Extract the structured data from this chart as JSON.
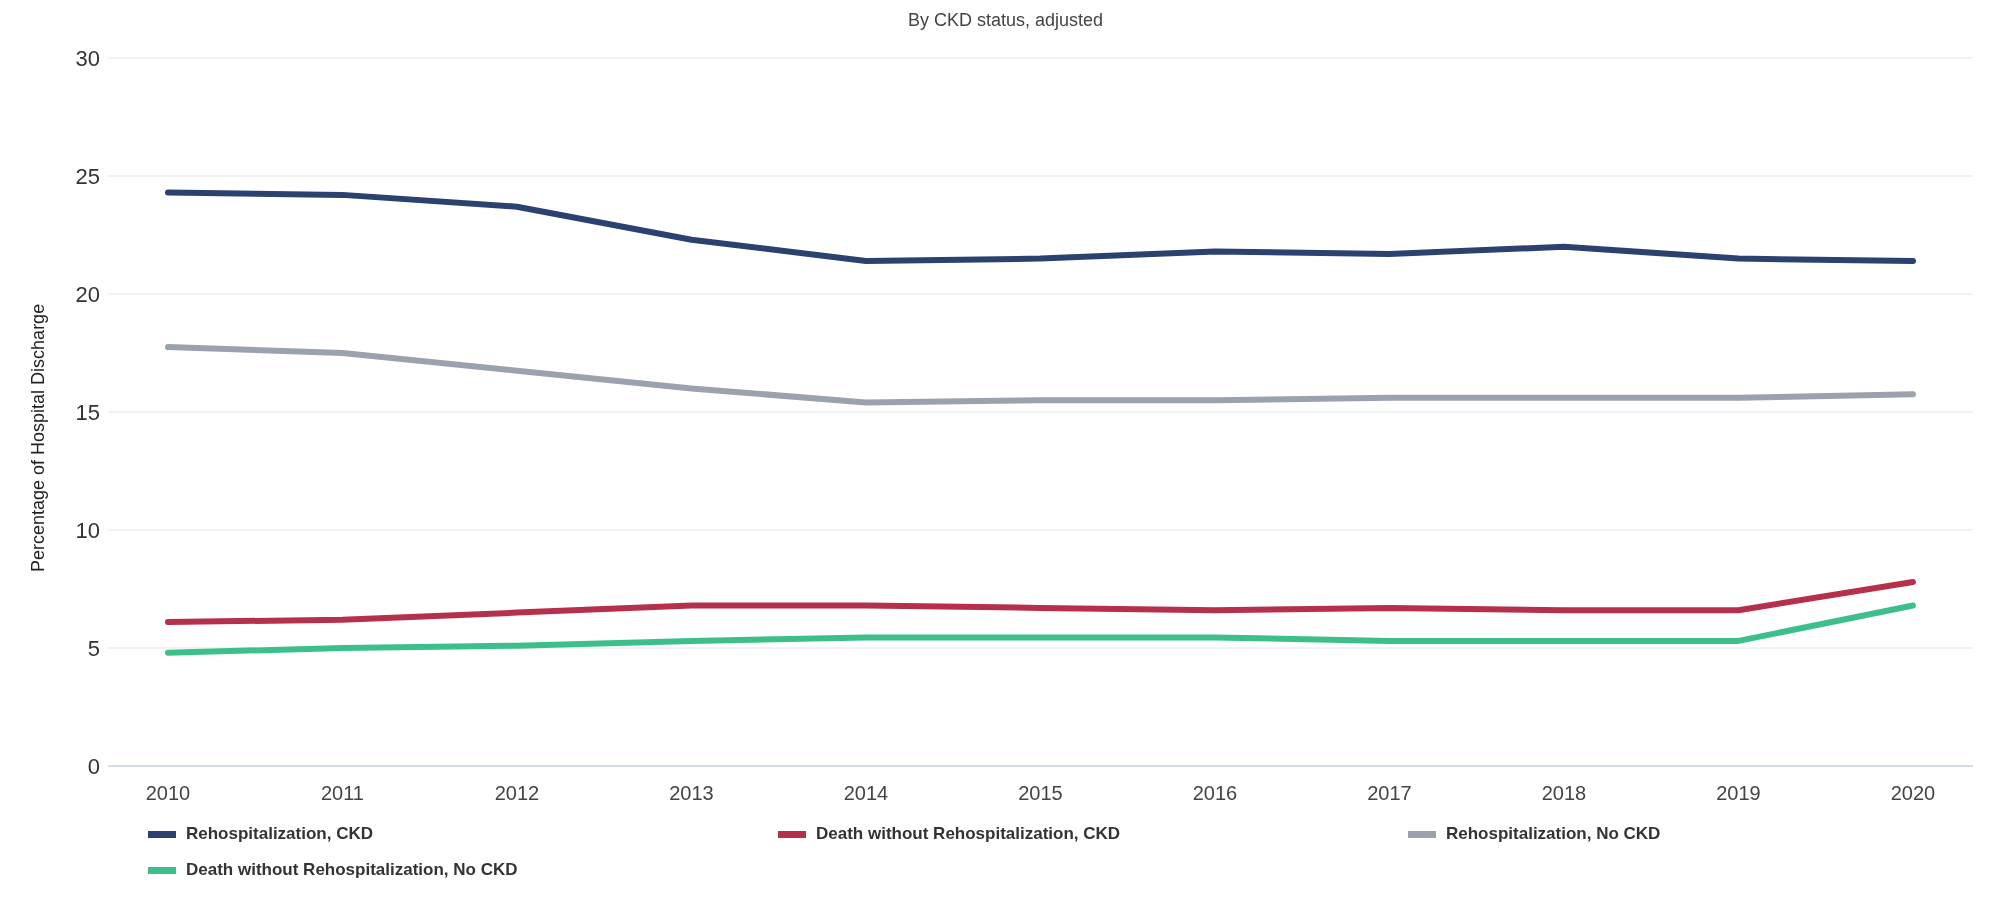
{
  "chart_data": {
    "type": "line",
    "subtitle": "By CKD status, adjusted",
    "ylabel": "Percentage of Hospital Discharge",
    "categories": [
      "2010",
      "2011",
      "2012",
      "2013",
      "2014",
      "2015",
      "2016",
      "2017",
      "2018",
      "2019",
      "2020"
    ],
    "series": [
      {
        "name": "Rehospitalization, CKD",
        "color": "#2b4170",
        "values": [
          24.3,
          24.2,
          23.7,
          22.3,
          21.4,
          21.5,
          21.8,
          21.7,
          22.0,
          21.5,
          21.4
        ]
      },
      {
        "name": "Death without Rehospitalization, CKD",
        "color": "#b5304a",
        "values": [
          6.1,
          6.2,
          6.5,
          6.8,
          6.8,
          6.7,
          6.6,
          6.7,
          6.6,
          6.6,
          7.8
        ]
      },
      {
        "name": "Rehospitalization, No CKD",
        "color": "#9aa3ad",
        "values": [
          17.75,
          17.5,
          16.75,
          16.0,
          15.4,
          15.5,
          15.5,
          15.6,
          15.6,
          15.6,
          15.75
        ]
      },
      {
        "name": "Death without Rehospitalization, No CKD",
        "color": "#3dbf8a",
        "values": [
          4.8,
          5.0,
          5.1,
          5.3,
          5.45,
          5.45,
          5.45,
          5.3,
          5.3,
          5.3,
          6.8
        ]
      }
    ],
    "ylim": [
      0,
      30
    ],
    "yticks": [
      0,
      5,
      10,
      15,
      20,
      25,
      30
    ],
    "grid": "y",
    "legend": "bottom",
    "marker": "none",
    "line_style": "solid"
  }
}
